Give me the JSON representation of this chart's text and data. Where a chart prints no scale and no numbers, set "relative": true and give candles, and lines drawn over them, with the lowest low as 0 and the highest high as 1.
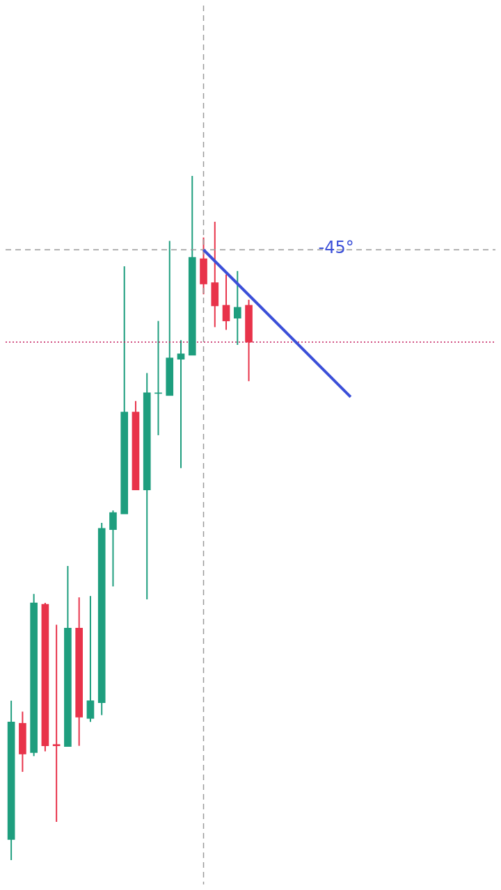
{
  "chart_data": {
    "type": "candlestick",
    "relative": true,
    "categories": [
      null,
      null,
      null,
      null,
      null,
      null,
      null,
      null,
      null,
      null,
      null,
      null,
      null,
      null,
      null,
      null,
      null,
      null,
      null,
      null,
      null,
      null,
      null,
      null,
      null,
      null,
      null,
      null,
      null,
      null,
      null
    ],
    "ohlc": [
      [
        0.03,
        0.233,
        0,
        0.202
      ],
      [
        0.2,
        0.217,
        0.129,
        0.155
      ],
      [
        0.157,
        0.389,
        0.152,
        0.376
      ],
      [
        0.374,
        0.376,
        0.159,
        0.167
      ],
      [
        0.169,
        0.344,
        0.056,
        0.167
      ],
      [
        0.166,
        0.43,
        0.166,
        0.339
      ],
      [
        0.339,
        0.384,
        0.167,
        0.209
      ],
      [
        0.207,
        0.386,
        0.202,
        0.233
      ],
      [
        0.23,
        0.493,
        0.212,
        0.485
      ],
      [
        0.483,
        0.511,
        0.4,
        0.508
      ],
      [
        0.506,
        0.868,
        0.506,
        0.655
      ],
      [
        0.655,
        0.671,
        0.541,
        0.541
      ],
      [
        0.541,
        0.712,
        0.381,
        0.683
      ],
      [
        0.682,
        0.788,
        0.621,
        0.683
      ],
      [
        0.679,
        0.905,
        0.679,
        0.734
      ],
      [
        0.732,
        0.76,
        0.573,
        0.74
      ],
      [
        0.738,
        1,
        0.738,
        0.881
      ],
      [
        0.879,
        0.91,
        0.827,
        0.842
      ],
      [
        0.844,
        0.933,
        0.779,
        0.81
      ],
      [
        0.811,
        0.856,
        0.775,
        0.788
      ],
      [
        0.792,
        0.861,
        0.753,
        0.808
      ],
      [
        0.811,
        0.819,
        0.7,
        0.757
      ],
      null,
      null,
      null,
      null,
      null,
      null,
      null,
      null,
      null
    ],
    "colors": [
      "#1e9e7e",
      "#e8334a",
      "#1e9e7e",
      "#e8334a",
      "#e8334a",
      "#1e9e7e",
      "#e8334a",
      "#1e9e7e",
      "#1e9e7e",
      "#1e9e7e",
      "#1e9e7e",
      "#e8334a",
      "#1e9e7e",
      "#1e9e7e",
      "#1e9e7e",
      "#1e9e7e",
      "#1e9e7e",
      "#e8334a",
      "#e8334a",
      "#e8334a",
      "#1e9e7e",
      "#e8334a",
      null,
      null,
      null,
      null,
      null,
      null,
      null,
      null,
      null
    ],
    "series": [
      {
        "type": "line",
        "color": "#3b4fd8",
        "values": [
          null,
          null,
          null,
          null,
          null,
          null,
          null,
          null,
          null,
          null,
          null,
          null,
          null,
          null,
          null,
          null,
          null,
          0.892,
          null,
          null,
          null,
          null,
          null,
          null,
          null,
          null,
          null,
          null,
          null,
          null,
          0.677
        ]
      }
    ],
    "ref_lines": [
      {
        "axis": "y",
        "value": 0.892,
        "color": "#999999",
        "line_style": "dashed"
      },
      {
        "axis": "y",
        "value": 0.757,
        "color": "#c2185b",
        "line_style": "dotted"
      }
    ],
    "annotations": [
      "-45°"
    ],
    "legend": false
  }
}
